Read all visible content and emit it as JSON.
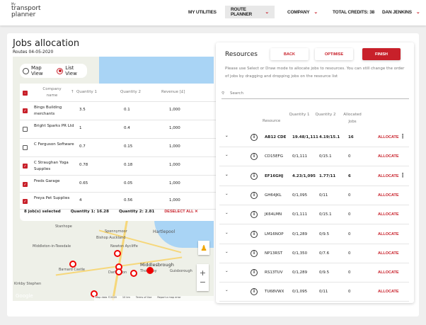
{
  "header": {
    "logo_my": "My",
    "logo_line1": "transport",
    "logo_line2": "planner",
    "nav": [
      {
        "label": "MY UTILITIES"
      },
      {
        "label": "ROUTE PLANNER"
      },
      {
        "label": "COMPANY"
      },
      {
        "label": "TOTAL CREDITS: 38"
      },
      {
        "label": "DAN JENKINS"
      }
    ]
  },
  "page": {
    "title": "Jobs allocation",
    "subtitle": "Routes 04-05-2020"
  },
  "view": {
    "map_label": "Map View",
    "list_label": "List View",
    "selected": "List View"
  },
  "jobs": {
    "columns": [
      "Company name",
      "Quantity 1",
      "Quantity 2",
      "Revenue [£]"
    ],
    "rows": [
      {
        "name": "Bings Building merchants",
        "q1": "3.5",
        "q2": "0.1",
        "rev": "1,000",
        "checked": true
      },
      {
        "name": "Bright Sparks PR Ltd",
        "q1": "1",
        "q2": "0.4",
        "rev": "1,000",
        "checked": false
      },
      {
        "name": "C Ferguson Software",
        "q1": "0.7",
        "q2": "0.15",
        "rev": "1,000",
        "checked": false
      },
      {
        "name": "C Straughan Yoga Supplies",
        "q1": "0.78",
        "q2": "0.18",
        "rev": "1,000",
        "checked": true
      },
      {
        "name": "Freds Garage",
        "q1": "0.65",
        "q2": "0.05",
        "rev": "1,000",
        "checked": true
      },
      {
        "name": "Freya Pet Supplies",
        "q1": "4",
        "q2": "0.56",
        "rev": "1,000",
        "checked": true
      }
    ],
    "summary": {
      "selected": "8 job(s) selected",
      "q1": "Quantity 1: 16.28",
      "q2": "Quantity 2: 2.81",
      "deselect": "DESELECT ALL"
    }
  },
  "map": {
    "towns": [
      "Stanhope",
      "Spennymoor",
      "Hartlepool",
      "Bishop Auckland",
      "Middleton-in-Teesdale",
      "Newton Aycliffe",
      "Middlesbrough",
      "Barnard Castle",
      "Darlington",
      "Thornaby",
      "Guisborough",
      "Kirkby Stephen"
    ],
    "attribution": "Map data ©2020",
    "scale": "10 km",
    "terms": "Terms of Use",
    "report": "Report a map error",
    "google": "Google"
  },
  "resources": {
    "title": "Resources",
    "back": "BACK",
    "optimise": "OPTIMISE",
    "finish": "FINISH",
    "help": "Please use Select or Draw mode to allocate jobs to resources. You can still change the order of jobs by dragging and dropping jobs on the resource list",
    "search_placeholder": "Search",
    "columns": [
      "Resource",
      "Quantity 1",
      "Quantity 2",
      "Allocated Jobs"
    ],
    "allocate": "ALLOCATE",
    "rows": [
      {
        "id": "AB12 CDE",
        "q1": "19.48/1,111",
        "q2": "4.19/15.1",
        "jobs": "16",
        "bold": true
      },
      {
        "id": "CD15EFG",
        "q1": "0/1,111",
        "q2": "0/15.1",
        "jobs": "0"
      },
      {
        "id": "EF16GHJ",
        "q1": "4.23/1,095",
        "q2": "1.77/11",
        "jobs": "6",
        "bold": true
      },
      {
        "id": "GH64JKL",
        "q1": "0/1,095",
        "q2": "0/11",
        "jobs": "0"
      },
      {
        "id": "JK64LMN",
        "q1": "0/1,111",
        "q2": "0/15.1",
        "jobs": "0"
      },
      {
        "id": "LM16NOP",
        "q1": "0/1,289",
        "q2": "0/9.5",
        "jobs": "0"
      },
      {
        "id": "NP13RST",
        "q1": "0/1,350",
        "q2": "0/7.6",
        "jobs": "0"
      },
      {
        "id": "RS13TUV",
        "q1": "0/1,289",
        "q2": "0/9.5",
        "jobs": "0"
      },
      {
        "id": "TU68VWX",
        "q1": "0/1,095",
        "q2": "0/11",
        "jobs": "0"
      }
    ]
  },
  "colors": {
    "accent": "#c8202a",
    "sea": "#a9d4f5"
  }
}
